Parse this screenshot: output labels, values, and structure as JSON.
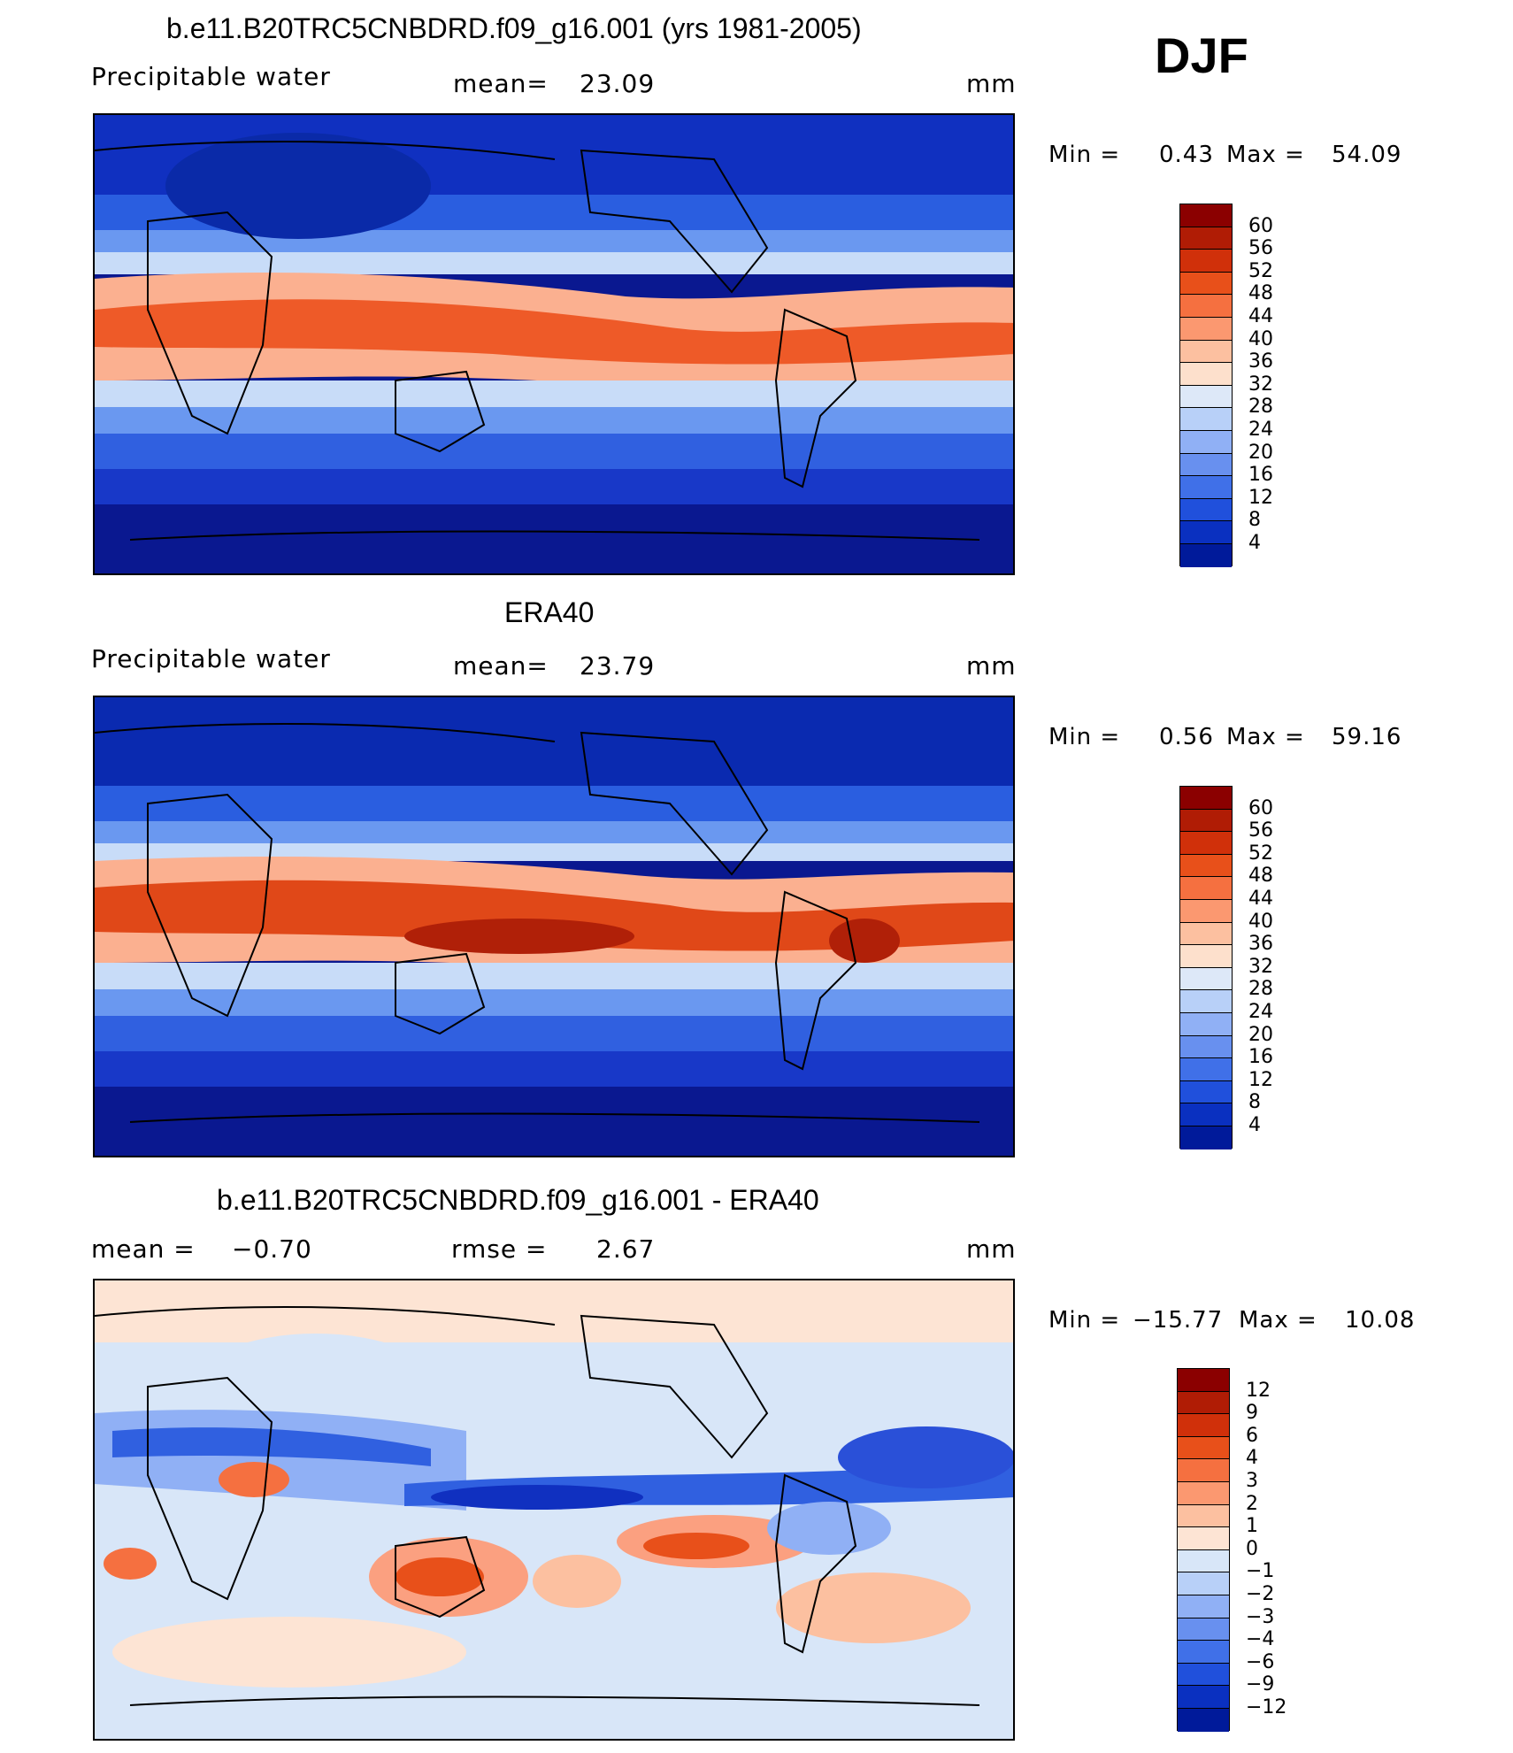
{
  "season": "DJF",
  "panels": [
    {
      "title": "b.e11.B20TRC5CNBDRD.f09_g16.001 (yrs 1981-2005)",
      "variable": "Precipitable water",
      "mean_label": "mean=",
      "mean_value": "23.09",
      "units": "mm",
      "min_label": "Min =",
      "min_value": "0.43",
      "max_label": "Max =",
      "max_value": "54.09",
      "colorbar": [
        "60",
        "56",
        "52",
        "48",
        "44",
        "40",
        "36",
        "32",
        "28",
        "24",
        "20",
        "16",
        "12",
        "8",
        "4"
      ],
      "colors": [
        "#8b0000",
        "#b01c05",
        "#d0300a",
        "#e8501a",
        "#f57040",
        "#fb9870",
        "#fcc0a0",
        "#fde0cc",
        "#dde8f8",
        "#b8d0f8",
        "#90b0f5",
        "#6890ef",
        "#4070e8",
        "#2050dc",
        "#0a30c0",
        "#001a9a"
      ]
    },
    {
      "title": "ERA40",
      "variable": "Precipitable water",
      "mean_label": "mean=",
      "mean_value": "23.79",
      "units": "mm",
      "min_label": "Min =",
      "min_value": "0.56",
      "max_label": "Max =",
      "max_value": "59.16",
      "colorbar": [
        "60",
        "56",
        "52",
        "48",
        "44",
        "40",
        "36",
        "32",
        "28",
        "24",
        "20",
        "16",
        "12",
        "8",
        "4"
      ],
      "colors": [
        "#8b0000",
        "#b01c05",
        "#d0300a",
        "#e8501a",
        "#f57040",
        "#fb9870",
        "#fcc0a0",
        "#fde0cc",
        "#dde8f8",
        "#b8d0f8",
        "#90b0f5",
        "#6890ef",
        "#4070e8",
        "#2050dc",
        "#0a30c0",
        "#001a9a"
      ]
    },
    {
      "title": "b.e11.B20TRC5CNBDRD.f09_g16.001 - ERA40",
      "mean_label": "mean =",
      "mean_value": "−0.70",
      "rmse_label": "rmse =",
      "rmse_value": "2.67",
      "units": "mm",
      "min_label": "Min =",
      "min_value": "−15.77",
      "max_label": "Max =",
      "max_value": "10.08",
      "colorbar": [
        "12",
        "9",
        "6",
        "4",
        "3",
        "2",
        "1",
        "0",
        "−1",
        "−2",
        "−3",
        "−4",
        "−6",
        "−9",
        "−12"
      ],
      "colors": [
        "#8b0000",
        "#b01c05",
        "#d0300a",
        "#e8501a",
        "#f57040",
        "#fb9870",
        "#fcc0a0",
        "#fde4d4",
        "#d8e6f8",
        "#b8d0f8",
        "#90b0f5",
        "#6890ef",
        "#4070e8",
        "#2050dc",
        "#0a30c0",
        "#001a9a"
      ]
    }
  ]
}
